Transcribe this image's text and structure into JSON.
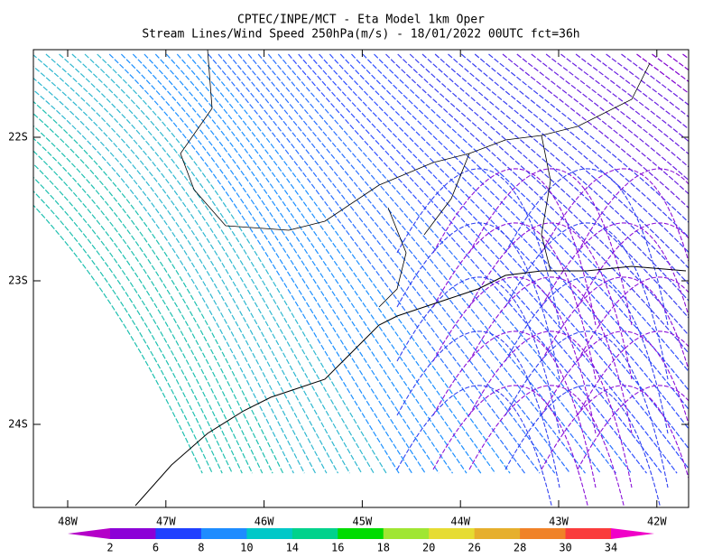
{
  "header": {
    "title": "CPTEC/INPE/MCT -  Eta Model 1km Oper",
    "subtitle": "Stream Lines/Wind Speed 250hPa(m/s) - 18/01/2022 00UTC fct=36h"
  },
  "map": {
    "lat_labels": [
      "22S",
      "23S",
      "24S"
    ],
    "lon_labels": [
      "48W",
      "47W",
      "46W",
      "45W",
      "44W",
      "43W",
      "42W"
    ]
  },
  "colorbar": {
    "labels": [
      "2",
      "6",
      "8",
      "10",
      "14",
      "16",
      "18",
      "20",
      "26",
      "28",
      "30",
      "34"
    ],
    "colors": [
      "#b400c8",
      "#8c00d7",
      "#2040ff",
      "#1e8cff",
      "#00c8c8",
      "#00d28c",
      "#00dc00",
      "#a0e632",
      "#e6dc32",
      "#e6af2d",
      "#f08228",
      "#fa3c3c",
      "#f000c8"
    ]
  }
}
